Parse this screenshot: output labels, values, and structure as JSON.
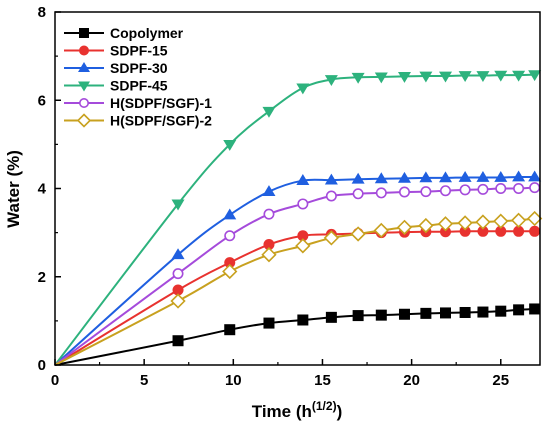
{
  "chart_data": {
    "type": "line",
    "xlabel": "Time (h",
    "xlabel_sup": "(1/2)",
    "xlabel_end": ")",
    "ylabel": "Water (%)",
    "xlim": [
      0,
      27.2
    ],
    "ylim": [
      0,
      8
    ],
    "xticks": [
      "0",
      "5",
      "10",
      "15",
      "20",
      "25"
    ],
    "yticks": [
      "0",
      "2",
      "4",
      "6",
      "8"
    ],
    "grid": false,
    "legend_position": "top-left",
    "series": [
      {
        "name": "Copolymer",
        "color": "#000000",
        "marker": "square",
        "x": [
          0,
          6.9,
          9.8,
          12.0,
          13.9,
          15.5,
          17.0,
          18.3,
          19.6,
          20.8,
          21.9,
          23.0,
          24.0,
          25.0,
          26.0,
          26.9
        ],
        "y": [
          0,
          0.55,
          0.8,
          0.95,
          1.02,
          1.08,
          1.12,
          1.13,
          1.15,
          1.17,
          1.18,
          1.19,
          1.2,
          1.22,
          1.25,
          1.27
        ]
      },
      {
        "name": "SDPF-15",
        "color": "#e8322f",
        "marker": "circle",
        "x": [
          0,
          6.9,
          9.8,
          12.0,
          13.9,
          15.5,
          17.0,
          18.3,
          19.6,
          20.8,
          21.9,
          23.0,
          24.0,
          25.0,
          26.0,
          26.9
        ],
        "y": [
          0,
          1.7,
          2.32,
          2.73,
          2.93,
          2.96,
          2.98,
          3.0,
          3.01,
          3.02,
          3.02,
          3.03,
          3.03,
          3.03,
          3.03,
          3.03
        ]
      },
      {
        "name": "SDPF-30",
        "color": "#1f5fe0",
        "marker": "triangle-up",
        "x": [
          0,
          6.9,
          9.8,
          12.0,
          13.9,
          15.5,
          17.0,
          18.3,
          19.6,
          20.8,
          21.9,
          23.0,
          24.0,
          25.0,
          26.0,
          26.9
        ],
        "y": [
          0,
          2.5,
          3.4,
          3.93,
          4.18,
          4.19,
          4.21,
          4.22,
          4.23,
          4.24,
          4.24,
          4.25,
          4.25,
          4.25,
          4.26,
          4.26
        ]
      },
      {
        "name": "SDPF-45",
        "color": "#2db27d",
        "marker": "triangle-down",
        "x": [
          0,
          6.9,
          9.8,
          12.0,
          13.9,
          15.5,
          17.0,
          18.3,
          19.6,
          20.8,
          21.9,
          23.0,
          24.0,
          25.0,
          26.0,
          26.9
        ],
        "y": [
          0,
          3.65,
          5.0,
          5.75,
          6.28,
          6.47,
          6.52,
          6.53,
          6.54,
          6.55,
          6.55,
          6.56,
          6.56,
          6.57,
          6.57,
          6.58
        ]
      },
      {
        "name": "H(SDPF/SGF)-1",
        "color": "#a54bdb",
        "marker": "circle-open",
        "x": [
          0,
          6.9,
          9.8,
          12.0,
          13.9,
          15.5,
          17.0,
          18.3,
          19.6,
          20.8,
          21.9,
          23.0,
          24.0,
          25.0,
          26.0,
          26.9
        ],
        "y": [
          0,
          2.07,
          2.93,
          3.42,
          3.65,
          3.83,
          3.88,
          3.9,
          3.92,
          3.93,
          3.95,
          3.97,
          3.98,
          4.0,
          4.0,
          4.02
        ]
      },
      {
        "name": "H(SDPF/SGF)-2",
        "color": "#c8a11f",
        "marker": "diamond-open",
        "x": [
          0,
          6.9,
          9.8,
          12.0,
          13.9,
          15.5,
          17.0,
          18.3,
          19.6,
          20.8,
          21.9,
          23.0,
          24.0,
          25.0,
          26.0,
          26.9
        ],
        "y": [
          0,
          1.45,
          2.12,
          2.5,
          2.7,
          2.88,
          2.97,
          3.05,
          3.12,
          3.16,
          3.2,
          3.22,
          3.24,
          3.26,
          3.28,
          3.32
        ]
      }
    ]
  }
}
